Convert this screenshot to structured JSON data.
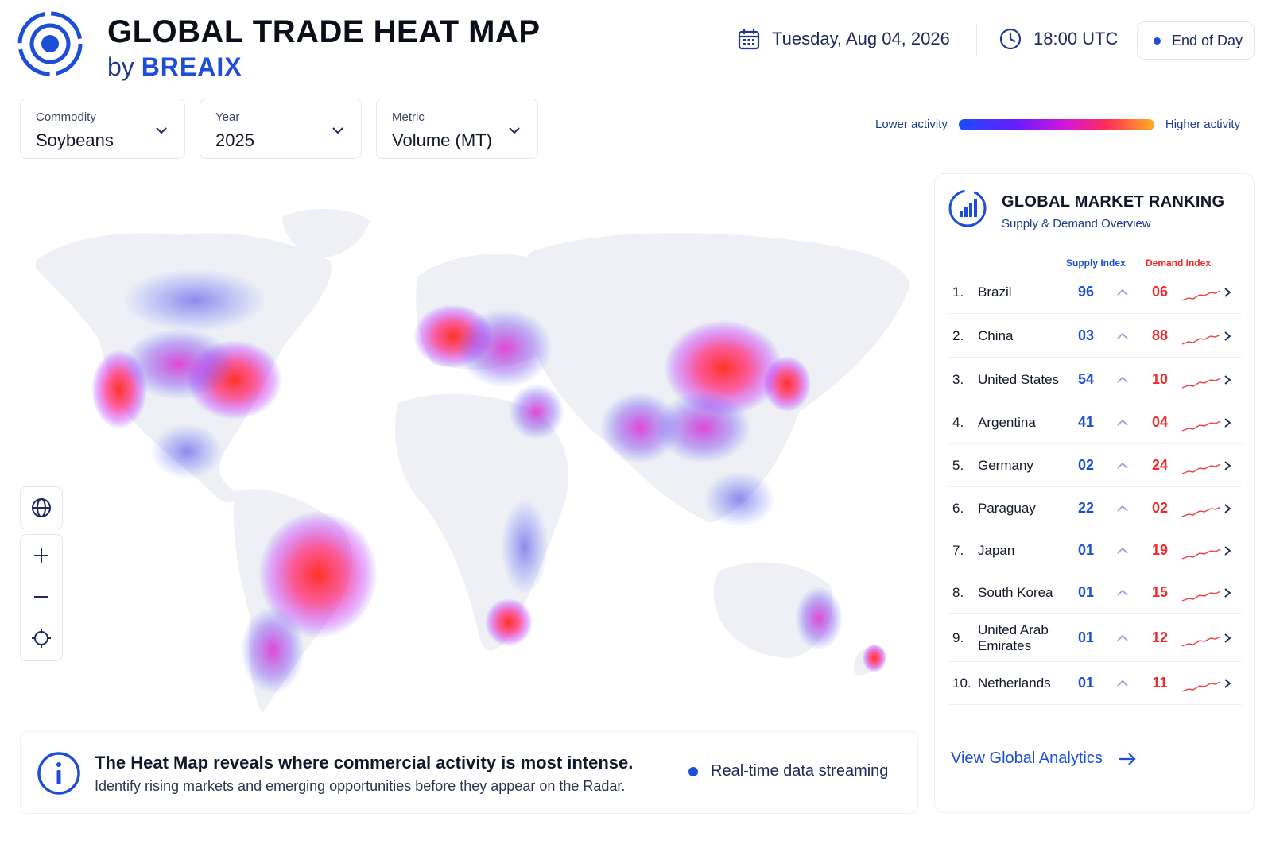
{
  "header": {
    "title": "GLOBAL TRADE HEAT MAP",
    "by": "by",
    "brand": "BREAIX",
    "date": "Tuesday, Aug 04, 2026",
    "time": "18:00 UTC",
    "status": "End of Day"
  },
  "filters": {
    "commodity": {
      "label": "Commodity",
      "value": "Soybeans"
    },
    "year": {
      "label": "Year",
      "value": "2025"
    },
    "metric": {
      "label": "Metric",
      "value": "Volume (MT)"
    }
  },
  "legend": {
    "low": "Lower activity",
    "high": "Higher activity",
    "colors": [
      "#1a4dff",
      "#6a1bff",
      "#d416d9",
      "#ff2a5a",
      "#ffb020"
    ]
  },
  "map_controls": [
    "globe-icon",
    "zoom-in-icon",
    "zoom-out-icon",
    "locate-icon"
  ],
  "info": {
    "headline": "The Heat Map reveals where commercial activity is most intense.",
    "body": "Identify rising markets and emerging opportunities before they appear on the Radar.",
    "stream": "Real-time data streaming"
  },
  "ranking": {
    "title": "GLOBAL MARKET RANKING",
    "subtitle": "Supply & Demand Overview",
    "supply_header": "Supply Index",
    "demand_header": "Demand Index",
    "rows": [
      {
        "rank": "1.",
        "name": "Brazil",
        "supply": "96",
        "demand": "06"
      },
      {
        "rank": "2.",
        "name": "China",
        "supply": "03",
        "demand": "88"
      },
      {
        "rank": "3.",
        "name": "United States",
        "supply": "54",
        "demand": "10"
      },
      {
        "rank": "4.",
        "name": "Argentina",
        "supply": "41",
        "demand": "04"
      },
      {
        "rank": "5.",
        "name": "Germany",
        "supply": "02",
        "demand": "24"
      },
      {
        "rank": "6.",
        "name": "Paraguay",
        "supply": "22",
        "demand": "02"
      },
      {
        "rank": "7.",
        "name": "Japan",
        "supply": "01",
        "demand": "19"
      },
      {
        "rank": "8.",
        "name": "South Korea",
        "supply": "01",
        "demand": "15"
      },
      {
        "rank": "9.",
        "name": "United Arab Emirates",
        "supply": "01",
        "demand": "12"
      },
      {
        "rank": "10.",
        "name": "Netherlands",
        "supply": "01",
        "demand": "11"
      }
    ],
    "cta": "View Global Analytics"
  }
}
